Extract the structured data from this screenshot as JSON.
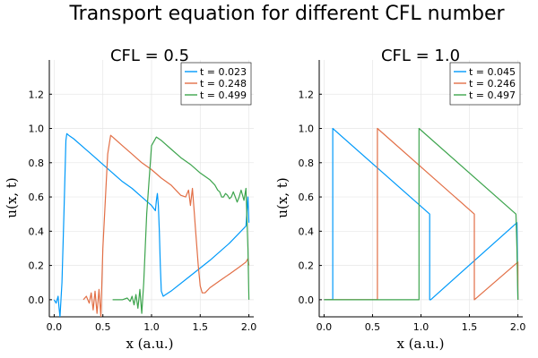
{
  "figure": {
    "title": "Transport equation for different CFL number"
  },
  "chart_data": [
    {
      "type": "line",
      "title": "CFL = 0.5",
      "xlabel": "x (a.u.)",
      "ylabel": "u(x, t)",
      "xlim": [
        -0.05,
        2.05
      ],
      "ylim": [
        -0.1,
        1.4
      ],
      "xticks": [
        0.0,
        0.5,
        1.0,
        1.5,
        2.0
      ],
      "xtick_labels": [
        "0.0",
        "0.5",
        "1.0",
        "1.5",
        "2.0"
      ],
      "yticks": [
        0.0,
        0.2,
        0.4,
        0.6,
        0.8,
        1.0,
        1.2
      ],
      "ytick_labels": [
        "0.0",
        "0.2",
        "0.4",
        "0.6",
        "0.8",
        "1.0",
        "1.2"
      ],
      "grid": true,
      "legend_position": "top-right",
      "series": [
        {
          "name": "t = 0.023",
          "color": "#009AFA",
          "x": [
            0,
            0.02,
            0.03,
            0.04,
            0.05,
            0.06,
            0.08,
            0.1,
            0.12,
            0.13,
            0.15,
            0.2,
            0.3,
            0.4,
            0.5,
            0.6,
            0.7,
            0.8,
            0.9,
            1.0,
            1.04,
            1.05,
            1.06,
            1.07,
            1.08,
            1.09,
            1.1,
            1.12,
            1.2,
            1.4,
            1.6,
            1.8,
            1.97,
            1.99,
            2.0
          ],
          "y": [
            0.0,
            -0.02,
            0.0,
            0.02,
            -0.05,
            -0.1,
            0.1,
            0.5,
            0.93,
            0.97,
            0.96,
            0.94,
            0.89,
            0.84,
            0.79,
            0.74,
            0.69,
            0.65,
            0.6,
            0.55,
            0.52,
            0.58,
            0.62,
            0.55,
            0.4,
            0.2,
            0.05,
            0.02,
            0.05,
            0.14,
            0.23,
            0.33,
            0.43,
            0.6,
            0.45
          ]
        },
        {
          "name": "t = 0.248",
          "color": "#E26F46",
          "x": [
            0.3,
            0.33,
            0.36,
            0.38,
            0.4,
            0.42,
            0.44,
            0.46,
            0.48,
            0.5,
            0.55,
            0.58,
            0.6,
            0.7,
            0.8,
            0.9,
            1.0,
            1.1,
            1.2,
            1.3,
            1.35,
            1.38,
            1.4,
            1.42,
            1.44,
            1.45,
            1.48,
            1.5,
            1.52,
            1.55,
            1.6,
            1.7,
            1.8,
            1.9,
            1.97,
            1.99,
            2.0
          ],
          "y": [
            0.0,
            0.02,
            -0.02,
            0.04,
            -0.06,
            0.05,
            -0.08,
            0.06,
            -0.1,
            0.3,
            0.85,
            0.96,
            0.95,
            0.9,
            0.85,
            0.8,
            0.76,
            0.71,
            0.67,
            0.61,
            0.6,
            0.64,
            0.55,
            0.65,
            0.5,
            0.42,
            0.2,
            0.08,
            0.04,
            0.04,
            0.07,
            0.11,
            0.15,
            0.19,
            0.22,
            0.24,
            0.2
          ]
        },
        {
          "name": "t = 0.499",
          "color": "#3DA44D",
          "x": [
            0.6,
            0.7,
            0.75,
            0.78,
            0.8,
            0.82,
            0.84,
            0.86,
            0.88,
            0.9,
            0.92,
            0.95,
            1.0,
            1.05,
            1.1,
            1.2,
            1.3,
            1.4,
            1.5,
            1.6,
            1.65,
            1.68,
            1.7,
            1.72,
            1.74,
            1.76,
            1.78,
            1.8,
            1.82,
            1.84,
            1.86,
            1.88,
            1.9,
            1.92,
            1.95,
            1.97,
            1.99,
            2.0
          ],
          "y": [
            0.0,
            0.0,
            0.01,
            -0.01,
            0.02,
            -0.03,
            0.03,
            -0.05,
            0.06,
            -0.08,
            0.1,
            0.5,
            0.9,
            0.95,
            0.93,
            0.88,
            0.83,
            0.79,
            0.74,
            0.7,
            0.67,
            0.64,
            0.63,
            0.6,
            0.6,
            0.62,
            0.61,
            0.59,
            0.6,
            0.63,
            0.6,
            0.57,
            0.6,
            0.64,
            0.58,
            0.65,
            0.3,
            0.0
          ]
        }
      ]
    },
    {
      "type": "line",
      "title": "CFL = 1.0",
      "xlabel": "x (a.u.)",
      "ylabel": "u(x, t)",
      "xlim": [
        -0.05,
        2.05
      ],
      "ylim": [
        -0.1,
        1.4
      ],
      "xticks": [
        0.0,
        0.5,
        1.0,
        1.5,
        2.0
      ],
      "xtick_labels": [
        "0.0",
        "0.5",
        "1.0",
        "1.5",
        "2.0"
      ],
      "yticks": [
        0.0,
        0.2,
        0.4,
        0.6,
        0.8,
        1.0,
        1.2
      ],
      "ytick_labels": [
        "0.0",
        "0.2",
        "0.4",
        "0.6",
        "0.8",
        "1.0",
        "1.2"
      ],
      "grid": true,
      "legend_position": "top-right",
      "series": [
        {
          "name": "t = 0.045",
          "color": "#009AFA",
          "x": [
            0.0,
            0.09,
            0.09,
            1.09,
            1.09,
            1.1,
            1.99,
            2.0
          ],
          "y": [
            0.0,
            0.0,
            1.0,
            0.5,
            0.0,
            0.0,
            0.45,
            0.0
          ]
        },
        {
          "name": "t = 0.246",
          "color": "#E26F46",
          "x": [
            0.0,
            0.55,
            0.55,
            1.55,
            1.55,
            2.0,
            2.0
          ],
          "y": [
            0.0,
            0.0,
            1.0,
            0.5,
            0.0,
            0.22,
            0.0
          ]
        },
        {
          "name": "t = 0.497",
          "color": "#3DA44D",
          "x": [
            0.0,
            0.98,
            0.98,
            1.98,
            1.99,
            2.0
          ],
          "y": [
            0.0,
            0.0,
            1.0,
            0.5,
            0.3,
            0.0
          ]
        }
      ]
    }
  ]
}
